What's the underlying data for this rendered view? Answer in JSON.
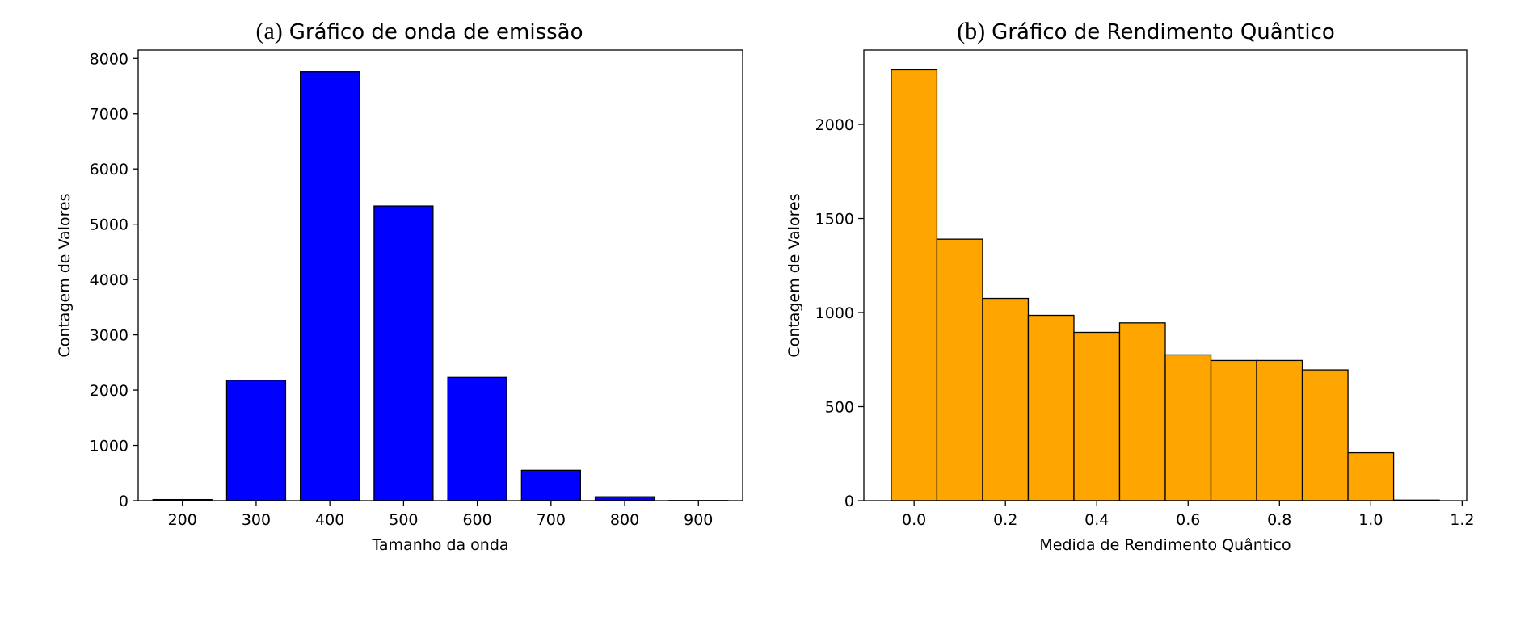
{
  "chart_data": [
    {
      "type": "bar",
      "panel_letter": "(a)",
      "title": "Gráfico de onda de emissão",
      "xlabel": "Tamanho da onda",
      "ylabel": "Contagem de Valores",
      "categories": [
        200,
        300,
        400,
        500,
        600,
        700,
        800,
        900
      ],
      "values": [
        20,
        2180,
        7760,
        5330,
        2230,
        550,
        70,
        3
      ],
      "xticks": [
        "200",
        "300",
        "400",
        "500",
        "600",
        "700",
        "800",
        "900"
      ],
      "yticks": [
        "0",
        "1000",
        "2000",
        "3000",
        "4000",
        "5000",
        "6000",
        "7000",
        "8000"
      ],
      "xlim": [
        140,
        960
      ],
      "ylim": [
        0,
        8150
      ],
      "grid": false,
      "color": "#0000ff",
      "edgecolor": "#000000"
    },
    {
      "type": "bar",
      "panel_letter": "(b)",
      "title": "Gráfico de Rendimento Quântico",
      "xlabel": "Medida de Rendimento Quântico",
      "ylabel": "Contagem de Valores",
      "bin_edges": [
        -0.05,
        0.05,
        0.15,
        0.25,
        0.35,
        0.45,
        0.55,
        0.65,
        0.75,
        0.85,
        0.95,
        1.05,
        1.15
      ],
      "values": [
        2290,
        1390,
        1075,
        985,
        895,
        945,
        775,
        745,
        745,
        695,
        255,
        3
      ],
      "xticks": [
        "0.0",
        "0.2",
        "0.4",
        "0.6",
        "0.8",
        "1.0",
        "1.2"
      ],
      "yticks": [
        "0",
        "500",
        "1000",
        "1500",
        "2000"
      ],
      "xlim": [
        -0.11,
        1.21
      ],
      "ylim": [
        0,
        2395
      ],
      "grid": false,
      "color": "#ffa500",
      "edgecolor": "#000000"
    }
  ]
}
